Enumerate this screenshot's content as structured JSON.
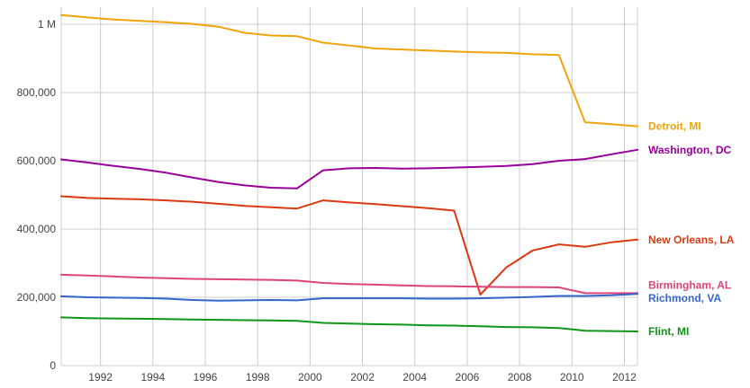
{
  "chart_data": {
    "type": "line",
    "title": "",
    "xlabel": "",
    "ylabel": "",
    "xlim": [
      1990.5,
      2012.5
    ],
    "ylim": [
      0,
      1050000
    ],
    "grid": true,
    "legend": "inline-right",
    "x_ticks": [
      {
        "value": 1992,
        "label": "1992"
      },
      {
        "value": 1994,
        "label": "1994"
      },
      {
        "value": 1996,
        "label": "1996"
      },
      {
        "value": 1998,
        "label": "1998"
      },
      {
        "value": 2000,
        "label": "2000"
      },
      {
        "value": 2002,
        "label": "2002"
      },
      {
        "value": 2004,
        "label": "2004"
      },
      {
        "value": 2006,
        "label": "2006"
      },
      {
        "value": 2008,
        "label": "2008"
      },
      {
        "value": 2010,
        "label": "2010"
      },
      {
        "value": 2012,
        "label": "2012"
      }
    ],
    "y_ticks": [
      {
        "value": 0,
        "label": "0"
      },
      {
        "value": 200000,
        "label": "200,000"
      },
      {
        "value": 400000,
        "label": "400,000"
      },
      {
        "value": 600000,
        "label": "600,000"
      },
      {
        "value": 800000,
        "label": "800,000"
      },
      {
        "value": 1000000,
        "label": "1 M"
      }
    ],
    "series": [
      {
        "name": "Detroit, MI",
        "color": "#f0a30a",
        "x": [
          1990.5,
          1991.5,
          1992.5,
          1993.5,
          1994.5,
          1995.5,
          1996.5,
          1997.5,
          1998.5,
          1999.5,
          2000.5,
          2001.5,
          2002.5,
          2003.5,
          2004.5,
          2005.5,
          2006.5,
          2007.5,
          2008.5,
          2009.5,
          2010.5,
          2011.5,
          2012.5
        ],
        "y": [
          1027000,
          1020000,
          1014000,
          1010000,
          1006000,
          1001000,
          993000,
          975000,
          967000,
          965000,
          946000,
          938000,
          929000,
          926000,
          923000,
          920000,
          918000,
          916000,
          912000,
          910000,
          713000,
          707000,
          701000
        ]
      },
      {
        "name": "Washington, DC",
        "color": "#990099",
        "x": [
          1990.5,
          1991.5,
          1992.5,
          1993.5,
          1994.5,
          1995.5,
          1996.5,
          1997.5,
          1998.5,
          1999.5,
          2000.5,
          2001.5,
          2002.5,
          2003.5,
          2004.5,
          2005.5,
          2006.5,
          2007.5,
          2008.5,
          2009.5,
          2010.5,
          2011.5,
          2012.5
        ],
        "y": [
          604000,
          595000,
          585000,
          576000,
          565000,
          551000,
          538000,
          528000,
          521000,
          519000,
          572000,
          578000,
          579000,
          577000,
          578000,
          580000,
          582000,
          585000,
          590000,
          600000,
          605000,
          619000,
          632000
        ]
      },
      {
        "name": "New Orleans, LA",
        "color": "#dc3912",
        "x": [
          1990.5,
          1991.5,
          1992.5,
          1993.5,
          1994.5,
          1995.5,
          1996.5,
          1997.5,
          1998.5,
          1999.5,
          2000.5,
          2001.5,
          2002.5,
          2003.5,
          2004.5,
          2005.5,
          2006.5,
          2007.5,
          2008.5,
          2009.5,
          2010.5,
          2011.5,
          2012.5
        ],
        "y": [
          496000,
          491000,
          489000,
          487000,
          484000,
          480000,
          474000,
          468000,
          464000,
          460000,
          484000,
          478000,
          473000,
          467000,
          461000,
          454000,
          208000,
          288000,
          337000,
          355000,
          348000,
          361000,
          369000
        ]
      },
      {
        "name": "Birmingham, AL",
        "color": "#dd4477",
        "x": [
          1990.5,
          1991.5,
          1992.5,
          1993.5,
          1994.5,
          1995.5,
          1996.5,
          1997.5,
          1998.5,
          1999.5,
          2000.5,
          2001.5,
          2002.5,
          2003.5,
          2004.5,
          2005.5,
          2006.5,
          2007.5,
          2008.5,
          2009.5,
          2010.5,
          2011.5,
          2012.5
        ],
        "y": [
          266000,
          264000,
          261000,
          258000,
          256000,
          254000,
          253000,
          252000,
          251000,
          249000,
          242000,
          239000,
          237000,
          235000,
          233000,
          232000,
          231000,
          230000,
          230000,
          229000,
          212000,
          212000,
          212000
        ]
      },
      {
        "name": "Richmond, VA",
        "color": "#3366cc",
        "x": [
          1990.5,
          1991.5,
          1992.5,
          1993.5,
          1994.5,
          1995.5,
          1996.5,
          1997.5,
          1998.5,
          1999.5,
          2000.5,
          2001.5,
          2002.5,
          2003.5,
          2004.5,
          2005.5,
          2006.5,
          2007.5,
          2008.5,
          2009.5,
          2010.5,
          2011.5,
          2012.5
        ],
        "y": [
          203000,
          200000,
          199000,
          198000,
          196000,
          192000,
          190000,
          191000,
          192000,
          191000,
          197000,
          197000,
          197000,
          197000,
          196000,
          196000,
          197000,
          199000,
          201000,
          204000,
          204000,
          206000,
          210000
        ]
      },
      {
        "name": "Flint, MI",
        "color": "#109618",
        "x": [
          1990.5,
          1991.5,
          1992.5,
          1993.5,
          1994.5,
          1995.5,
          1996.5,
          1997.5,
          1998.5,
          1999.5,
          2000.5,
          2001.5,
          2002.5,
          2003.5,
          2004.5,
          2005.5,
          2006.5,
          2007.5,
          2008.5,
          2009.5,
          2010.5,
          2011.5,
          2012.5
        ],
        "y": [
          141000,
          139000,
          138000,
          137000,
          136000,
          135000,
          134000,
          133000,
          132000,
          131000,
          125000,
          123000,
          121000,
          120000,
          118000,
          117000,
          115000,
          113000,
          112000,
          110000,
          102000,
          101000,
          100000
        ]
      }
    ]
  }
}
